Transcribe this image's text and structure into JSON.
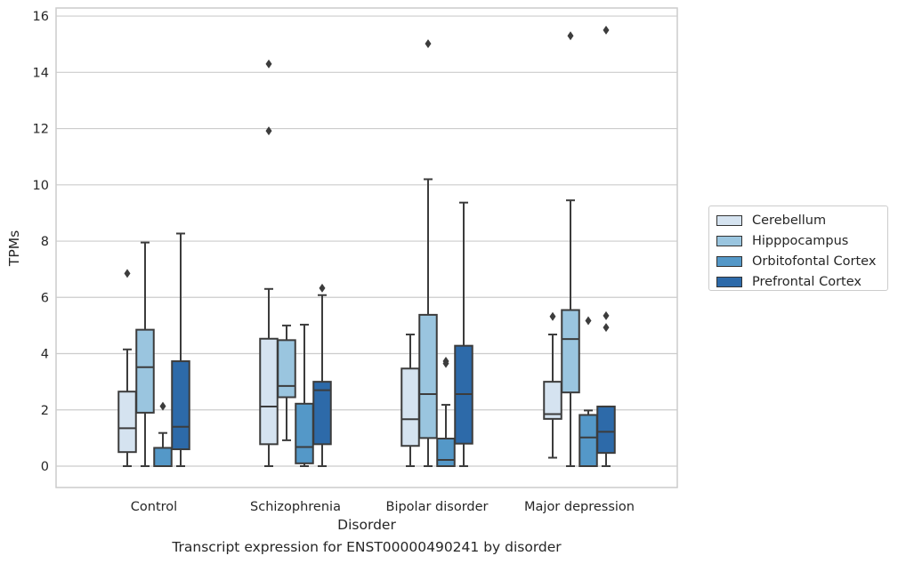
{
  "chart_data": {
    "type": "boxplot",
    "xlabel": "Disorder",
    "ylabel": "TPMs",
    "ylim": [
      -0.75,
      16.3
    ],
    "yticks": [
      0,
      2,
      4,
      6,
      8,
      10,
      12,
      14,
      16
    ],
    "grid": "horizontal",
    "legend_position": "right",
    "categories": [
      "Control",
      "Schizophrenia",
      "Bipolar disorder",
      "Major depression"
    ],
    "series": [
      {
        "name": "Cerebellum",
        "color": "#d5e3f0",
        "boxes": [
          {
            "whislo": 0.0,
            "q1": 0.5,
            "med": 1.35,
            "q3": 2.65,
            "whishi": 4.15,
            "fliers": [
              6.85
            ]
          },
          {
            "whislo": 0.0,
            "q1": 0.78,
            "med": 2.12,
            "q3": 4.53,
            "whishi": 6.3,
            "fliers": [
              11.92,
              14.3
            ]
          },
          {
            "whislo": 0.0,
            "q1": 0.72,
            "med": 1.67,
            "q3": 3.47,
            "whishi": 4.68,
            "fliers": []
          },
          {
            "whislo": 0.3,
            "q1": 1.68,
            "med": 1.85,
            "q3": 3.0,
            "whishi": 4.68,
            "fliers": [
              5.32
            ]
          }
        ]
      },
      {
        "name": "Hipppocampus",
        "color": "#9ac5df",
        "boxes": [
          {
            "whislo": 0.0,
            "q1": 1.9,
            "med": 3.52,
            "q3": 4.85,
            "whishi": 7.95,
            "fliers": []
          },
          {
            "whislo": 0.92,
            "q1": 2.45,
            "med": 2.85,
            "q3": 4.48,
            "whishi": 5.0,
            "fliers": []
          },
          {
            "whislo": 0.0,
            "q1": 1.0,
            "med": 2.56,
            "q3": 5.38,
            "whishi": 10.2,
            "fliers": [
              15.02
            ]
          },
          {
            "whislo": 0.0,
            "q1": 2.62,
            "med": 4.52,
            "q3": 5.55,
            "whishi": 9.45,
            "fliers": [
              15.3
            ]
          }
        ]
      },
      {
        "name": "Orbitofontal Cortex",
        "color": "#5498c8",
        "boxes": [
          {
            "whislo": 0.0,
            "q1": 0.0,
            "med": 0.0,
            "q3": 0.65,
            "whishi": 1.18,
            "fliers": [
              2.13
            ]
          },
          {
            "whislo": 0.0,
            "q1": 0.1,
            "med": 0.68,
            "q3": 2.22,
            "whishi": 5.03,
            "fliers": []
          },
          {
            "whislo": 0.0,
            "q1": 0.0,
            "med": 0.22,
            "q3": 0.98,
            "whishi": 2.18,
            "fliers": [
              3.65,
              3.73
            ]
          },
          {
            "whislo": 0.0,
            "q1": 0.0,
            "med": 1.02,
            "q3": 1.82,
            "whishi": 1.98,
            "fliers": [
              5.17
            ]
          }
        ]
      },
      {
        "name": "Prefrontal Cortex",
        "color": "#2d6aa9",
        "boxes": [
          {
            "whislo": 0.0,
            "q1": 0.6,
            "med": 1.4,
            "q3": 3.73,
            "whishi": 8.27,
            "fliers": []
          },
          {
            "whislo": 0.0,
            "q1": 0.78,
            "med": 2.7,
            "q3": 3.0,
            "whishi": 6.08,
            "fliers": [
              6.33
            ]
          },
          {
            "whislo": 0.0,
            "q1": 0.8,
            "med": 2.56,
            "q3": 4.28,
            "whishi": 9.37,
            "fliers": []
          },
          {
            "whislo": 0.0,
            "q1": 0.47,
            "med": 1.22,
            "q3": 2.12,
            "whishi": 2.12,
            "fliers": [
              4.93,
              5.35,
              15.5
            ]
          }
        ]
      }
    ]
  },
  "caption": "Transcript expression for ENST00000490241 by disorder"
}
